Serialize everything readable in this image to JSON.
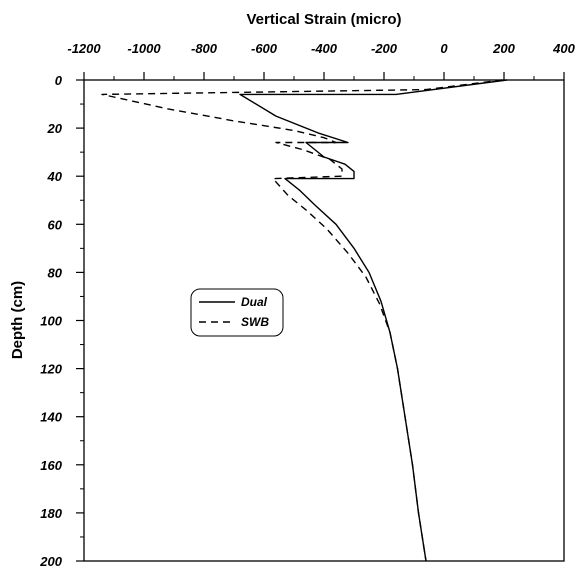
{
  "chart_data": {
    "type": "line",
    "xlabel": "Vertical Strain (micro)",
    "ylabel": "Depth (cm)",
    "xlim": [
      -1200,
      400
    ],
    "ylim": [
      0,
      200
    ],
    "y_inverted": true,
    "x_axis_position": "top",
    "x_ticks": [
      -1200,
      -1000,
      -800,
      -600,
      -400,
      -200,
      0,
      200,
      400
    ],
    "y_ticks": [
      0,
      20,
      40,
      60,
      80,
      100,
      120,
      140,
      160,
      180,
      200
    ],
    "grid": false,
    "legend": "center-left",
    "series": [
      {
        "name": "Dual",
        "style": "solid",
        "points": [
          [
            210,
            0
          ],
          [
            -160,
            6
          ],
          [
            -680,
            6
          ],
          [
            -560,
            15
          ],
          [
            -420,
            22
          ],
          [
            -320,
            26
          ],
          [
            -460,
            26
          ],
          [
            -400,
            32
          ],
          [
            -330,
            35
          ],
          [
            -300,
            38
          ],
          [
            -300,
            41
          ],
          [
            -530,
            41
          ],
          [
            -480,
            46
          ],
          [
            -430,
            52
          ],
          [
            -360,
            60
          ],
          [
            -300,
            70
          ],
          [
            -250,
            80
          ],
          [
            -210,
            92
          ],
          [
            -180,
            105
          ],
          [
            -155,
            120
          ],
          [
            -130,
            140
          ],
          [
            -105,
            160
          ],
          [
            -85,
            180
          ],
          [
            -60,
            200
          ]
        ]
      },
      {
        "name": "SWB",
        "style": "dashed",
        "points": [
          [
            195,
            0
          ],
          [
            -60,
            4
          ],
          [
            -1140,
            6
          ],
          [
            -920,
            12
          ],
          [
            -700,
            17
          ],
          [
            -500,
            21
          ],
          [
            -400,
            24
          ],
          [
            -360,
            26
          ],
          [
            -560,
            26
          ],
          [
            -470,
            29
          ],
          [
            -380,
            33
          ],
          [
            -340,
            37
          ],
          [
            -340,
            40
          ],
          [
            -570,
            41
          ],
          [
            -520,
            48
          ],
          [
            -460,
            54
          ],
          [
            -390,
            62
          ],
          [
            -320,
            72
          ],
          [
            -260,
            82
          ],
          [
            -215,
            93
          ],
          [
            -180,
            105
          ],
          [
            -155,
            120
          ],
          [
            -130,
            140
          ],
          [
            -105,
            160
          ],
          [
            -85,
            180
          ],
          [
            -60,
            200
          ]
        ]
      }
    ]
  }
}
